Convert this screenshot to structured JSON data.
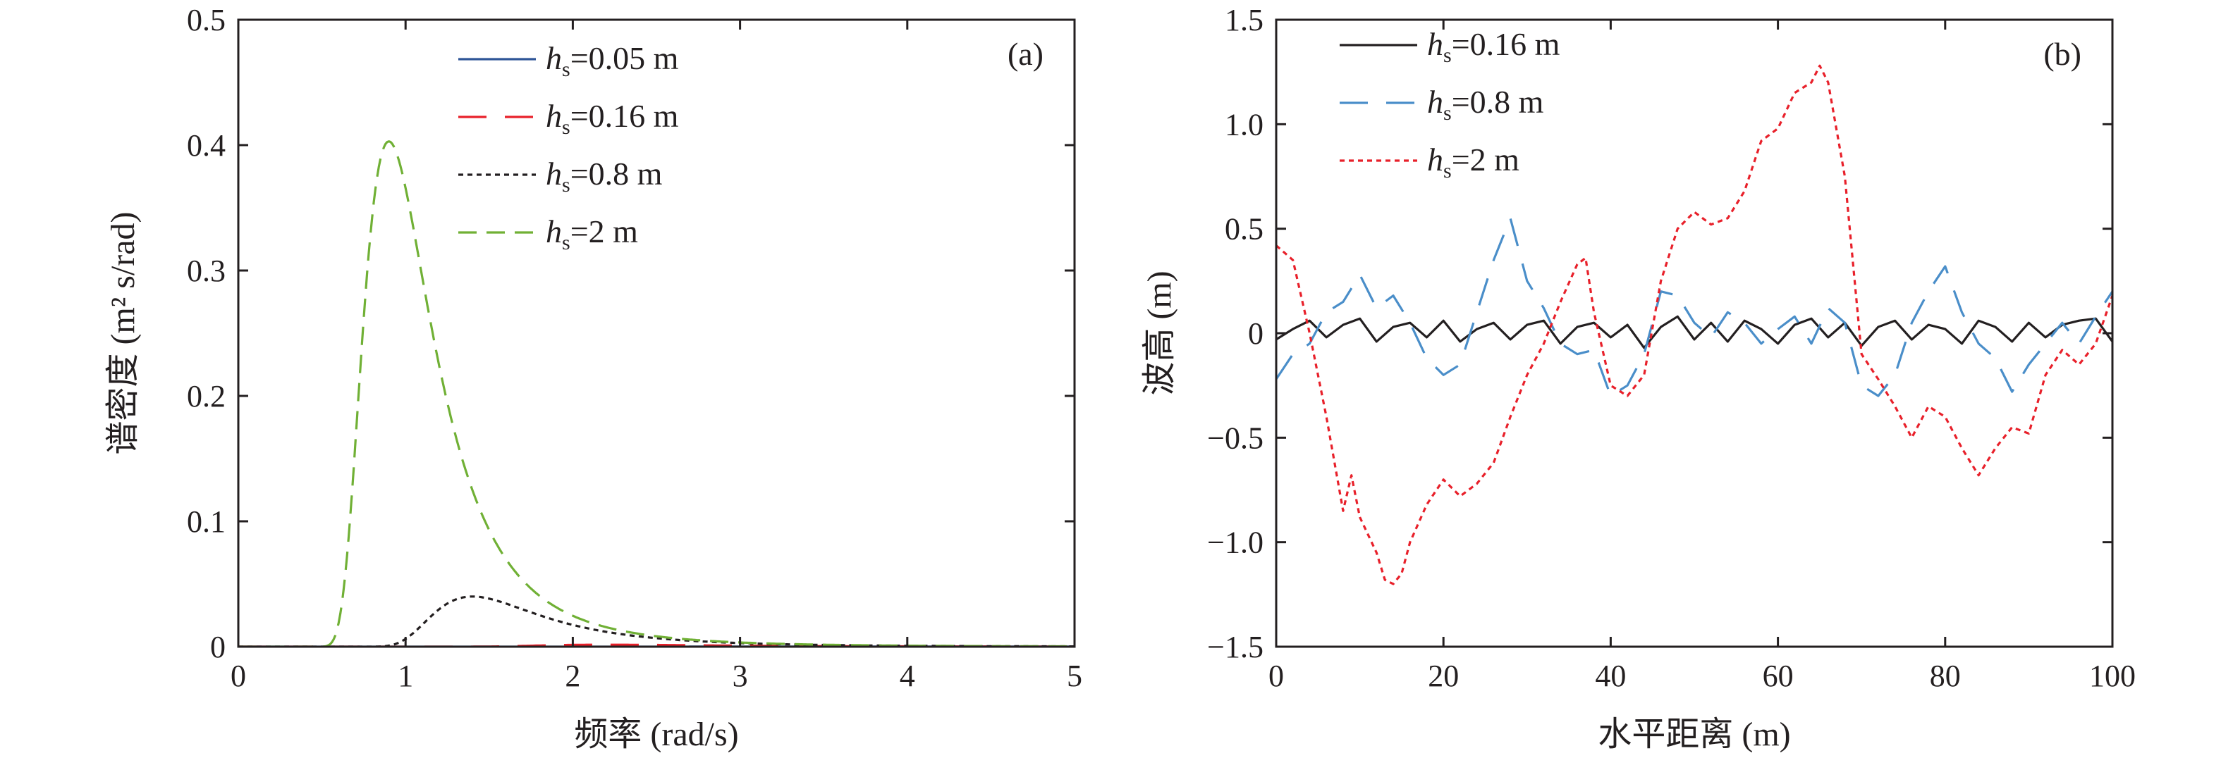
{
  "chart_data": [
    {
      "type": "line",
      "panel_label": "(a)",
      "xlabel": "频率 (rad/s)",
      "ylabel": "谱密度 (m² s/rad)",
      "xlim": [
        0,
        5
      ],
      "ylim": [
        0,
        0.5
      ],
      "xticks": [
        "0",
        "1",
        "2",
        "3",
        "4",
        "5"
      ],
      "yticks": [
        "0",
        "0.1",
        "0.2",
        "0.3",
        "0.4",
        "0.5"
      ],
      "grid": false,
      "legend_position": "top-center",
      "series": [
        {
          "name": "hs=0.05 m",
          "label_main": "h",
          "label_sub": "s",
          "label_rest": "=0.05 m",
          "color": "#2f5597",
          "dash": "solid",
          "peak_freq": 3.6,
          "peak_value": 0.0001
        },
        {
          "name": "hs=0.16 m",
          "label_main": "h",
          "label_sub": "s",
          "label_rest": "=0.16 m",
          "color": "#e8202a",
          "dash": "longdash",
          "peak_freq": 2.2,
          "peak_value": 0.0016
        },
        {
          "name": "hs=0.8 m",
          "label_main": "h",
          "label_sub": "s",
          "label_rest": "=0.8 m",
          "color": "#231f20",
          "dash": "dot",
          "peak_freq": 1.4,
          "peak_value": 0.04
        },
        {
          "name": "hs=2 m",
          "label_main": "h",
          "label_sub": "s",
          "label_rest": "=2 m",
          "color": "#70b035",
          "dash": "dash",
          "peak_freq": 0.9,
          "peak_value": 0.403
        }
      ]
    },
    {
      "type": "line",
      "panel_label": "(b)",
      "xlabel": "水平距离 (m)",
      "ylabel": "波高 (m)",
      "xlim": [
        0,
        100
      ],
      "ylim": [
        -1.5,
        1.5
      ],
      "xticks": [
        "0",
        "20",
        "40",
        "60",
        "80",
        "100"
      ],
      "yticks": [
        "−1.5",
        "−1.0",
        "−0.5",
        "0",
        "0.5",
        "1.0",
        "1.5"
      ],
      "grid": false,
      "legend_position": "top-left",
      "series": [
        {
          "name": "hs=0.16 m",
          "label_main": "h",
          "label_sub": "s",
          "label_rest": "=0.16 m",
          "color": "#231f20",
          "dash": "solid",
          "x": [
            0,
            2,
            4,
            6,
            8,
            10,
            12,
            14,
            16,
            18,
            20,
            22,
            24,
            26,
            28,
            30,
            32,
            34,
            36,
            38,
            40,
            42,
            44,
            46,
            48,
            50,
            52,
            54,
            56,
            58,
            60,
            62,
            64,
            66,
            68,
            70,
            72,
            74,
            76,
            78,
            80,
            82,
            84,
            86,
            88,
            90,
            92,
            94,
            96,
            98,
            100
          ],
          "y": [
            -0.03,
            0.02,
            0.06,
            -0.02,
            0.04,
            0.07,
            -0.04,
            0.03,
            0.05,
            -0.02,
            0.06,
            -0.04,
            0.02,
            0.05,
            -0.03,
            0.04,
            0.06,
            -0.05,
            0.03,
            0.05,
            -0.02,
            0.04,
            -0.07,
            0.03,
            0.08,
            -0.03,
            0.05,
            -0.04,
            0.06,
            0.02,
            -0.05,
            0.04,
            0.07,
            -0.02,
            0.05,
            -0.06,
            0.03,
            0.06,
            -0.03,
            0.04,
            0.02,
            -0.05,
            0.06,
            0.03,
            -0.04,
            0.05,
            -0.02,
            0.04,
            0.06,
            0.07,
            -0.04
          ]
        },
        {
          "name": "hs=0.8 m",
          "label_main": "h",
          "label_sub": "s",
          "label_rest": "=0.8 m",
          "color": "#4a8ec9",
          "dash": "longdash",
          "x": [
            0,
            2,
            4,
            6,
            8,
            10,
            12,
            14,
            16,
            18,
            20,
            22,
            24,
            26,
            28,
            30,
            32,
            34,
            36,
            38,
            40,
            42,
            44,
            46,
            48,
            50,
            52,
            54,
            56,
            58,
            60,
            62,
            64,
            66,
            68,
            70,
            72,
            74,
            76,
            78,
            80,
            82,
            84,
            86,
            88,
            90,
            92,
            94,
            96,
            98,
            100
          ],
          "y": [
            -0.22,
            -0.1,
            -0.05,
            0.1,
            0.15,
            0.28,
            0.12,
            0.18,
            0.05,
            -0.12,
            -0.2,
            -0.15,
            0.1,
            0.35,
            0.55,
            0.25,
            0.12,
            -0.05,
            -0.1,
            -0.08,
            -0.3,
            -0.25,
            -0.1,
            0.2,
            0.18,
            0.05,
            -0.02,
            0.1,
            0.05,
            -0.05,
            0.02,
            0.08,
            -0.05,
            0.12,
            0.05,
            -0.25,
            -0.3,
            -0.2,
            0.05,
            0.2,
            0.32,
            0.1,
            -0.05,
            -0.12,
            -0.28,
            -0.15,
            -0.05,
            0.05,
            -0.05,
            0.08,
            0.2
          ]
        },
        {
          "name": "hs=2 m",
          "label_main": "h",
          "label_sub": "s",
          "label_rest": "=2 m",
          "color": "#e8202a",
          "dash": "dot",
          "x": [
            0,
            2,
            4,
            6,
            8,
            9,
            10,
            12,
            13,
            14,
            15,
            16,
            18,
            20,
            22,
            24,
            26,
            28,
            30,
            32,
            34,
            36,
            37,
            38,
            40,
            42,
            44,
            46,
            48,
            50,
            52,
            54,
            56,
            58,
            60,
            62,
            64,
            65,
            66,
            68,
            70,
            72,
            74,
            76,
            78,
            80,
            82,
            84,
            86,
            88,
            90,
            92,
            94,
            96,
            98,
            100
          ],
          "y": [
            0.42,
            0.35,
            0.0,
            -0.4,
            -0.85,
            -0.68,
            -0.88,
            -1.05,
            -1.18,
            -1.2,
            -1.15,
            -1.0,
            -0.82,
            -0.7,
            -0.78,
            -0.72,
            -0.62,
            -0.4,
            -0.2,
            -0.05,
            0.15,
            0.33,
            0.36,
            0.1,
            -0.25,
            -0.3,
            -0.2,
            0.25,
            0.5,
            0.58,
            0.52,
            0.55,
            0.68,
            0.92,
            0.98,
            1.15,
            1.2,
            1.28,
            1.2,
            0.75,
            -0.1,
            -0.22,
            -0.35,
            -0.5,
            -0.35,
            -0.4,
            -0.55,
            -0.68,
            -0.55,
            -0.45,
            -0.48,
            -0.2,
            -0.08,
            -0.15,
            -0.05,
            0.18
          ]
        }
      ]
    }
  ]
}
